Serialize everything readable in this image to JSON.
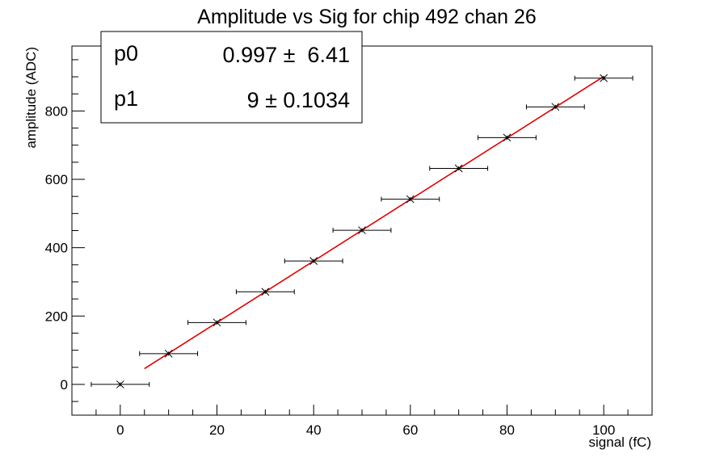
{
  "chart_data": {
    "type": "scatter",
    "title": "Amplitude vs Sig for chip 492 chan 26",
    "xlabel": "signal (fC)",
    "ylabel": "amplitude (ADC)",
    "xlim": [
      -10,
      110
    ],
    "ylim": [
      -90,
      990
    ],
    "x_ticks": [
      0,
      20,
      40,
      60,
      80,
      100
    ],
    "y_ticks": [
      0,
      200,
      400,
      600,
      800
    ],
    "grid": false,
    "series": [
      {
        "x": [
          0,
          10,
          20,
          30,
          40,
          50,
          60,
          70,
          80,
          90,
          100
        ],
        "y": [
          0,
          90,
          181,
          271,
          361,
          451,
          542,
          632,
          722,
          812,
          896
        ],
        "x_err": [
          1,
          1,
          1,
          1,
          1,
          1,
          1,
          1,
          1,
          1,
          1
        ],
        "y_err": [
          6,
          6,
          6,
          6,
          6,
          6,
          6,
          6,
          6,
          6,
          6
        ],
        "color": "#000000"
      }
    ],
    "fit": {
      "color": "#e00000",
      "x_range": [
        5,
        100
      ],
      "p0": 0.997,
      "p1": 9
    },
    "stats_box": {
      "position": "top-left",
      "rows": [
        {
          "name": "p0",
          "value": "0.997 ±  6.41"
        },
        {
          "name": "p1",
          "value": "9 ± 0.1034"
        }
      ]
    }
  }
}
